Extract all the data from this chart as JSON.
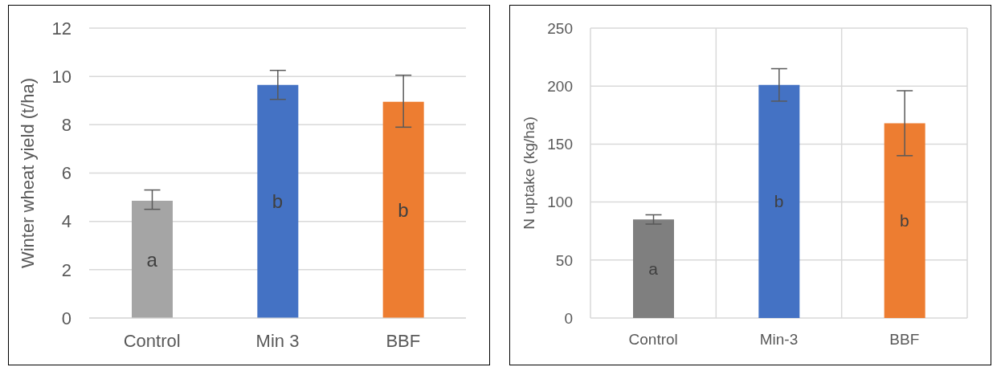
{
  "chart_data": [
    {
      "type": "bar",
      "ylabel": "Winter wheat yield (t/ha)",
      "categories": [
        "Control",
        "Min 3",
        "BBF"
      ],
      "values": [
        4.85,
        9.65,
        8.95
      ],
      "colors": [
        "#a5a5a5",
        "#4472c4",
        "#ed7d31"
      ],
      "errors": [
        [
          4.5,
          5.3
        ],
        [
          9.05,
          10.25
        ],
        [
          7.9,
          10.05
        ]
      ],
      "ylim": [
        0,
        12
      ],
      "yticks": [
        0,
        2,
        4,
        6,
        8,
        10,
        12
      ],
      "grid": "y",
      "annotations": [
        "a",
        "b",
        "b"
      ]
    },
    {
      "type": "bar",
      "ylabel": "N uptake (kg/ha)",
      "categories": [
        "Control",
        "Min-3",
        "BBF"
      ],
      "values": [
        85,
        201,
        168
      ],
      "colors": [
        "#7f7f7f",
        "#4472c4",
        "#ed7d31"
      ],
      "errors": [
        [
          81,
          89
        ],
        [
          187,
          215
        ],
        [
          140,
          196
        ]
      ],
      "ylim": [
        0,
        250
      ],
      "yticks": [
        0,
        50,
        100,
        150,
        200,
        250
      ],
      "grid": true,
      "annotations": [
        "a",
        "b",
        "b"
      ]
    }
  ]
}
